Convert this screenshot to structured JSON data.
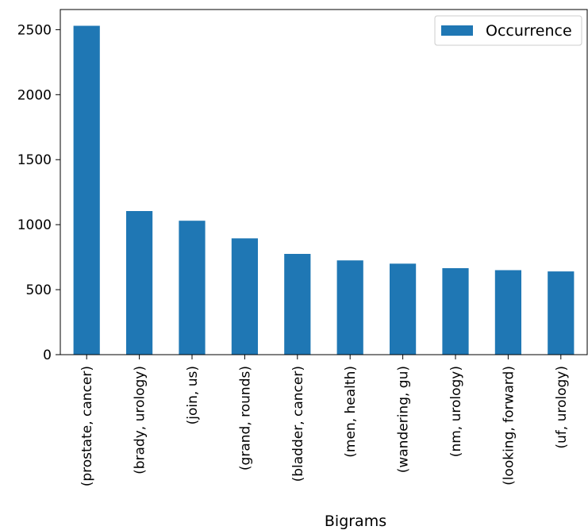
{
  "chart_data": {
    "type": "bar",
    "categories": [
      "(prostate, cancer)",
      "(brady, urology)",
      "(join, us)",
      "(grand, rounds)",
      "(bladder, cancer)",
      "(men, health)",
      "(wandering, gu)",
      "(nm, urology)",
      "(looking, forward)",
      "(uf, urology)"
    ],
    "series": [
      {
        "name": "Occurrence",
        "values": [
          2530,
          1105,
          1030,
          895,
          775,
          725,
          700,
          665,
          650,
          640
        ],
        "color": "#1f77b4"
      }
    ],
    "title": "",
    "xlabel": "Bigrams",
    "ylabel": "",
    "ylim": [
      0,
      2655
    ],
    "yticks": [
      0,
      500,
      1000,
      1500,
      2000,
      2500
    ],
    "grid": false,
    "legend_position": "top-right"
  }
}
